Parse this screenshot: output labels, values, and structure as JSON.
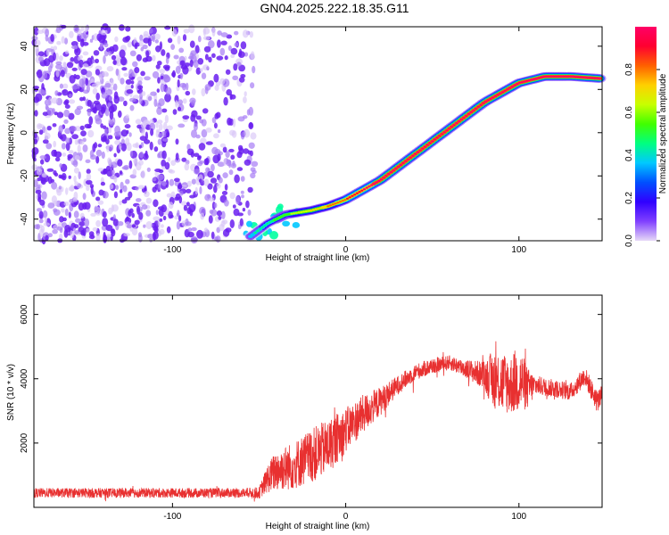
{
  "title": "GN04.2025.222.18.35.G11",
  "chart_data": [
    {
      "type": "heatmap",
      "title": "GN04.2025.222.18.35.G11",
      "xlabel": "Height of straight line (km)",
      "ylabel": "Frequency (Hz)",
      "xlim": [
        -180,
        148
      ],
      "ylim": [
        -50,
        49
      ],
      "x_ticks": [
        "-100",
        "0",
        "100"
      ],
      "y_ticks": [
        "-40",
        "-20",
        "0",
        "20",
        "40"
      ],
      "colorbar": {
        "label": "Normalized spectral amplitude",
        "ticks": [
          "0.0",
          "0.2",
          "0.4",
          "0.6",
          "0.8"
        ],
        "range": [
          0,
          1
        ],
        "colors": [
          "#e6d9f7",
          "#8040ff",
          "#3000ff",
          "#0050ff",
          "#00c8ff",
          "#00ff80",
          "#40ff00",
          "#c8ff00",
          "#ffd000",
          "#ff6000",
          "#ff0030",
          "#ff0066"
        ]
      },
      "ridge": [
        {
          "x": -55,
          "y": -48
        },
        {
          "x": -45,
          "y": -42
        },
        {
          "x": -35,
          "y": -38
        },
        {
          "x": -20,
          "y": -36
        },
        {
          "x": -10,
          "y": -34
        },
        {
          "x": 0,
          "y": -31
        },
        {
          "x": 20,
          "y": -22
        },
        {
          "x": 40,
          "y": -10
        },
        {
          "x": 60,
          "y": 2
        },
        {
          "x": 80,
          "y": 14
        },
        {
          "x": 100,
          "y": 23
        },
        {
          "x": 115,
          "y": 26
        },
        {
          "x": 130,
          "y": 26
        },
        {
          "x": 148,
          "y": 25
        }
      ],
      "noise_region": {
        "x": [
          -180,
          -52
        ],
        "y": [
          -50,
          49
        ]
      }
    },
    {
      "type": "line",
      "xlabel": "Height of straight line (km)",
      "ylabel": "SNR (10 * v/v)",
      "xlim": [
        -180,
        148
      ],
      "ylim": [
        0,
        6600
      ],
      "x_ticks": [
        "-100",
        "0",
        "100"
      ],
      "y_ticks": [
        "2000",
        "4000",
        "6000"
      ],
      "color": "#e83030",
      "series": [
        {
          "x": [
            -180,
            -150,
            -120,
            -90,
            -60,
            -50,
            -45,
            -40,
            -30,
            -20,
            -10,
            0,
            10,
            20,
            30,
            40,
            50,
            60,
            70,
            80,
            85,
            90,
            95,
            100,
            105,
            110,
            120,
            130,
            138,
            145,
            148
          ],
          "y": [
            450,
            450,
            450,
            450,
            450,
            450,
            900,
            1150,
            1300,
            1600,
            1900,
            2400,
            2900,
            3300,
            3800,
            4200,
            4400,
            4500,
            4300,
            4100,
            4000,
            3900,
            3800,
            4000,
            3700,
            3800,
            3700,
            3600,
            4100,
            3300,
            3500
          ],
          "spread": [
            150,
            150,
            150,
            150,
            150,
            180,
            450,
            650,
            750,
            850,
            850,
            700,
            600,
            450,
            300,
            250,
            250,
            230,
            300,
            450,
            900,
            1000,
            900,
            1100,
            650,
            300,
            280,
            280,
            300,
            350,
            300
          ]
        }
      ]
    }
  ]
}
